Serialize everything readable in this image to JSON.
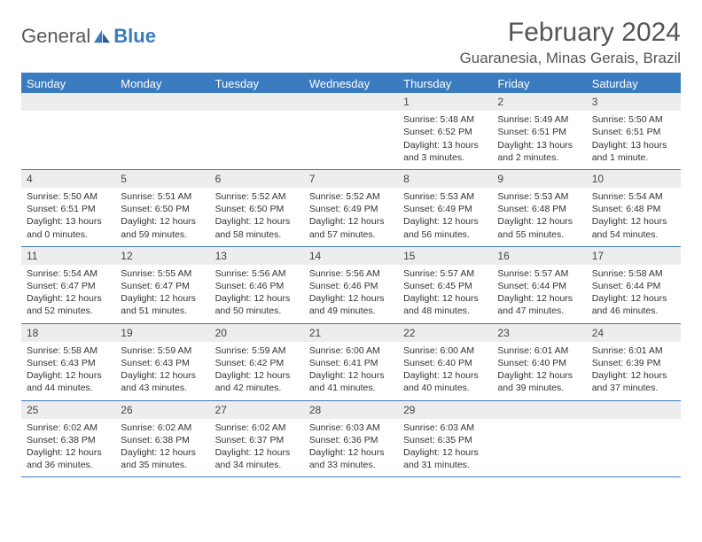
{
  "logo": {
    "text1": "General",
    "text2": "Blue"
  },
  "title": "February 2024",
  "location": "Guaranesia, Minas Gerais, Brazil",
  "colors": {
    "brand_blue": "#3b7bbf",
    "header_text": "#58595b",
    "row_alt": "#ededed",
    "text": "#333333",
    "background": "#ffffff"
  },
  "day_names": [
    "Sunday",
    "Monday",
    "Tuesday",
    "Wednesday",
    "Thursday",
    "Friday",
    "Saturday"
  ],
  "weeks": [
    [
      {
        "empty": true
      },
      {
        "empty": true
      },
      {
        "empty": true
      },
      {
        "empty": true
      },
      {
        "num": "1",
        "sunrise": "Sunrise: 5:48 AM",
        "sunset": "Sunset: 6:52 PM",
        "daylight": "Daylight: 13 hours and 3 minutes."
      },
      {
        "num": "2",
        "sunrise": "Sunrise: 5:49 AM",
        "sunset": "Sunset: 6:51 PM",
        "daylight": "Daylight: 13 hours and 2 minutes."
      },
      {
        "num": "3",
        "sunrise": "Sunrise: 5:50 AM",
        "sunset": "Sunset: 6:51 PM",
        "daylight": "Daylight: 13 hours and 1 minute."
      }
    ],
    [
      {
        "num": "4",
        "sunrise": "Sunrise: 5:50 AM",
        "sunset": "Sunset: 6:51 PM",
        "daylight": "Daylight: 13 hours and 0 minutes."
      },
      {
        "num": "5",
        "sunrise": "Sunrise: 5:51 AM",
        "sunset": "Sunset: 6:50 PM",
        "daylight": "Daylight: 12 hours and 59 minutes."
      },
      {
        "num": "6",
        "sunrise": "Sunrise: 5:52 AM",
        "sunset": "Sunset: 6:50 PM",
        "daylight": "Daylight: 12 hours and 58 minutes."
      },
      {
        "num": "7",
        "sunrise": "Sunrise: 5:52 AM",
        "sunset": "Sunset: 6:49 PM",
        "daylight": "Daylight: 12 hours and 57 minutes."
      },
      {
        "num": "8",
        "sunrise": "Sunrise: 5:53 AM",
        "sunset": "Sunset: 6:49 PM",
        "daylight": "Daylight: 12 hours and 56 minutes."
      },
      {
        "num": "9",
        "sunrise": "Sunrise: 5:53 AM",
        "sunset": "Sunset: 6:48 PM",
        "daylight": "Daylight: 12 hours and 55 minutes."
      },
      {
        "num": "10",
        "sunrise": "Sunrise: 5:54 AM",
        "sunset": "Sunset: 6:48 PM",
        "daylight": "Daylight: 12 hours and 54 minutes."
      }
    ],
    [
      {
        "num": "11",
        "sunrise": "Sunrise: 5:54 AM",
        "sunset": "Sunset: 6:47 PM",
        "daylight": "Daylight: 12 hours and 52 minutes."
      },
      {
        "num": "12",
        "sunrise": "Sunrise: 5:55 AM",
        "sunset": "Sunset: 6:47 PM",
        "daylight": "Daylight: 12 hours and 51 minutes."
      },
      {
        "num": "13",
        "sunrise": "Sunrise: 5:56 AM",
        "sunset": "Sunset: 6:46 PM",
        "daylight": "Daylight: 12 hours and 50 minutes."
      },
      {
        "num": "14",
        "sunrise": "Sunrise: 5:56 AM",
        "sunset": "Sunset: 6:46 PM",
        "daylight": "Daylight: 12 hours and 49 minutes."
      },
      {
        "num": "15",
        "sunrise": "Sunrise: 5:57 AM",
        "sunset": "Sunset: 6:45 PM",
        "daylight": "Daylight: 12 hours and 48 minutes."
      },
      {
        "num": "16",
        "sunrise": "Sunrise: 5:57 AM",
        "sunset": "Sunset: 6:44 PM",
        "daylight": "Daylight: 12 hours and 47 minutes."
      },
      {
        "num": "17",
        "sunrise": "Sunrise: 5:58 AM",
        "sunset": "Sunset: 6:44 PM",
        "daylight": "Daylight: 12 hours and 46 minutes."
      }
    ],
    [
      {
        "num": "18",
        "sunrise": "Sunrise: 5:58 AM",
        "sunset": "Sunset: 6:43 PM",
        "daylight": "Daylight: 12 hours and 44 minutes."
      },
      {
        "num": "19",
        "sunrise": "Sunrise: 5:59 AM",
        "sunset": "Sunset: 6:43 PM",
        "daylight": "Daylight: 12 hours and 43 minutes."
      },
      {
        "num": "20",
        "sunrise": "Sunrise: 5:59 AM",
        "sunset": "Sunset: 6:42 PM",
        "daylight": "Daylight: 12 hours and 42 minutes."
      },
      {
        "num": "21",
        "sunrise": "Sunrise: 6:00 AM",
        "sunset": "Sunset: 6:41 PM",
        "daylight": "Daylight: 12 hours and 41 minutes."
      },
      {
        "num": "22",
        "sunrise": "Sunrise: 6:00 AM",
        "sunset": "Sunset: 6:40 PM",
        "daylight": "Daylight: 12 hours and 40 minutes."
      },
      {
        "num": "23",
        "sunrise": "Sunrise: 6:01 AM",
        "sunset": "Sunset: 6:40 PM",
        "daylight": "Daylight: 12 hours and 39 minutes."
      },
      {
        "num": "24",
        "sunrise": "Sunrise: 6:01 AM",
        "sunset": "Sunset: 6:39 PM",
        "daylight": "Daylight: 12 hours and 37 minutes."
      }
    ],
    [
      {
        "num": "25",
        "sunrise": "Sunrise: 6:02 AM",
        "sunset": "Sunset: 6:38 PM",
        "daylight": "Daylight: 12 hours and 36 minutes."
      },
      {
        "num": "26",
        "sunrise": "Sunrise: 6:02 AM",
        "sunset": "Sunset: 6:38 PM",
        "daylight": "Daylight: 12 hours and 35 minutes."
      },
      {
        "num": "27",
        "sunrise": "Sunrise: 6:02 AM",
        "sunset": "Sunset: 6:37 PM",
        "daylight": "Daylight: 12 hours and 34 minutes."
      },
      {
        "num": "28",
        "sunrise": "Sunrise: 6:03 AM",
        "sunset": "Sunset: 6:36 PM",
        "daylight": "Daylight: 12 hours and 33 minutes."
      },
      {
        "num": "29",
        "sunrise": "Sunrise: 6:03 AM",
        "sunset": "Sunset: 6:35 PM",
        "daylight": "Daylight: 12 hours and 31 minutes."
      },
      {
        "empty": true
      },
      {
        "empty": true
      }
    ]
  ]
}
